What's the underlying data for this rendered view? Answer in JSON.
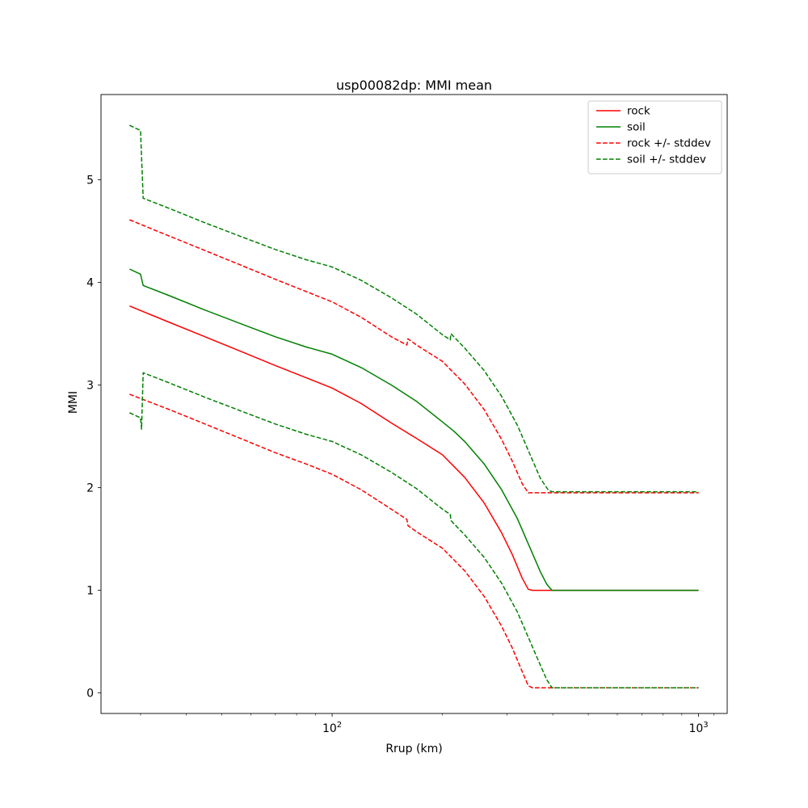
{
  "chart_data": {
    "type": "line",
    "title": "usp00082dp: MMI mean",
    "xlabel": "Rrup (km)",
    "ylabel": "MMI",
    "x_scale": "log",
    "grid": false,
    "xlim": [
      23.4,
      1197
    ],
    "ylim": [
      -0.2,
      5.83
    ],
    "x_major_ticks": [
      {
        "value": 100,
        "base": "10",
        "exp": "2"
      },
      {
        "value": 1000,
        "base": "10",
        "exp": "3"
      }
    ],
    "x_minor_ticks": [
      30,
      40,
      50,
      60,
      70,
      80,
      90,
      200,
      300,
      400,
      500,
      600,
      700,
      800,
      900,
      1100
    ],
    "y_ticks": [
      0,
      1,
      2,
      3,
      4,
      5
    ],
    "legend": {
      "position": "upper right",
      "entries": [
        {
          "label": "rock",
          "color": "#ff0000",
          "dash": false
        },
        {
          "label": "soil",
          "color": "#008000",
          "dash": false
        },
        {
          "label": "rock +/- stddev",
          "color": "#ff0000",
          "dash": true
        },
        {
          "label": "soil +/- stddev",
          "color": "#008000",
          "dash": true
        }
      ]
    },
    "series": [
      {
        "id": "rock-mean",
        "name": "rock",
        "color": "#ff0000",
        "dash": false,
        "points": [
          [
            28,
            3.77
          ],
          [
            36,
            3.61
          ],
          [
            45,
            3.47
          ],
          [
            57,
            3.32
          ],
          [
            70,
            3.19
          ],
          [
            85,
            3.07
          ],
          [
            100,
            2.97
          ],
          [
            120,
            2.82
          ],
          [
            145,
            2.63
          ],
          [
            170,
            2.48
          ],
          [
            200,
            2.32
          ],
          [
            230,
            2.1
          ],
          [
            260,
            1.85
          ],
          [
            290,
            1.56
          ],
          [
            310,
            1.35
          ],
          [
            330,
            1.12
          ],
          [
            343,
            1.01
          ],
          [
            352,
            1.0
          ],
          [
            500,
            1.0
          ],
          [
            1000,
            1.0
          ]
        ]
      },
      {
        "id": "soil-mean",
        "name": "soil",
        "color": "#008000",
        "dash": false,
        "points": [
          [
            28,
            4.13
          ],
          [
            30,
            4.08
          ],
          [
            30.5,
            3.97
          ],
          [
            36,
            3.87
          ],
          [
            45,
            3.73
          ],
          [
            57,
            3.59
          ],
          [
            70,
            3.47
          ],
          [
            85,
            3.37
          ],
          [
            100,
            3.3
          ],
          [
            120,
            3.17
          ],
          [
            145,
            3.0
          ],
          [
            170,
            2.84
          ],
          [
            200,
            2.64
          ],
          [
            215,
            2.55
          ],
          [
            230,
            2.45
          ],
          [
            260,
            2.23
          ],
          [
            290,
            1.98
          ],
          [
            320,
            1.7
          ],
          [
            350,
            1.38
          ],
          [
            370,
            1.18
          ],
          [
            385,
            1.06
          ],
          [
            398,
            1.0
          ],
          [
            500,
            1.0
          ],
          [
            1000,
            1.0
          ]
        ]
      },
      {
        "id": "rock-plus-stddev",
        "name": "rock + stddev",
        "color": "#ff0000",
        "dash": true,
        "points": [
          [
            28,
            4.61
          ],
          [
            36,
            4.45
          ],
          [
            45,
            4.31
          ],
          [
            57,
            4.16
          ],
          [
            70,
            4.03
          ],
          [
            85,
            3.91
          ],
          [
            100,
            3.81
          ],
          [
            120,
            3.66
          ],
          [
            145,
            3.47
          ],
          [
            160,
            3.39
          ],
          [
            161,
            3.45
          ],
          [
            170,
            3.39
          ],
          [
            200,
            3.23
          ],
          [
            230,
            3.01
          ],
          [
            260,
            2.76
          ],
          [
            290,
            2.47
          ],
          [
            310,
            2.26
          ],
          [
            330,
            2.04
          ],
          [
            343,
            1.95
          ],
          [
            500,
            1.95
          ],
          [
            1000,
            1.95
          ]
        ]
      },
      {
        "id": "rock-minus-stddev",
        "name": "rock - stddev",
        "color": "#ff0000",
        "dash": true,
        "points": [
          [
            28,
            2.91
          ],
          [
            36,
            2.76
          ],
          [
            45,
            2.62
          ],
          [
            57,
            2.47
          ],
          [
            70,
            2.34
          ],
          [
            85,
            2.23
          ],
          [
            100,
            2.13
          ],
          [
            120,
            1.98
          ],
          [
            145,
            1.79
          ],
          [
            160,
            1.69
          ],
          [
            161,
            1.63
          ],
          [
            170,
            1.57
          ],
          [
            200,
            1.41
          ],
          [
            230,
            1.19
          ],
          [
            260,
            0.94
          ],
          [
            290,
            0.65
          ],
          [
            310,
            0.44
          ],
          [
            330,
            0.21
          ],
          [
            343,
            0.07
          ],
          [
            352,
            0.05
          ],
          [
            500,
            0.05
          ],
          [
            1000,
            0.05
          ]
        ]
      },
      {
        "id": "soil-plus-stddev",
        "name": "soil + stddev",
        "color": "#008000",
        "dash": true,
        "points": [
          [
            28,
            5.53
          ],
          [
            30,
            5.48
          ],
          [
            30.5,
            4.82
          ],
          [
            36,
            4.72
          ],
          [
            45,
            4.58
          ],
          [
            57,
            4.44
          ],
          [
            70,
            4.32
          ],
          [
            85,
            4.22
          ],
          [
            100,
            4.15
          ],
          [
            120,
            4.02
          ],
          [
            145,
            3.85
          ],
          [
            170,
            3.69
          ],
          [
            200,
            3.49
          ],
          [
            210,
            3.44
          ],
          [
            211,
            3.5
          ],
          [
            230,
            3.36
          ],
          [
            260,
            3.14
          ],
          [
            290,
            2.89
          ],
          [
            320,
            2.61
          ],
          [
            350,
            2.29
          ],
          [
            370,
            2.09
          ],
          [
            390,
            1.97
          ],
          [
            400,
            1.96
          ],
          [
            500,
            1.96
          ],
          [
            1000,
            1.96
          ]
        ]
      },
      {
        "id": "soil-minus-stddev",
        "name": "soil - stddev",
        "color": "#008000",
        "dash": true,
        "points": [
          [
            28,
            2.73
          ],
          [
            30,
            2.68
          ],
          [
            30.2,
            2.57
          ],
          [
            30.5,
            3.12
          ],
          [
            36,
            3.02
          ],
          [
            45,
            2.88
          ],
          [
            57,
            2.74
          ],
          [
            70,
            2.62
          ],
          [
            85,
            2.52
          ],
          [
            100,
            2.45
          ],
          [
            120,
            2.32
          ],
          [
            145,
            2.15
          ],
          [
            170,
            1.99
          ],
          [
            200,
            1.79
          ],
          [
            210,
            1.74
          ],
          [
            211,
            1.68
          ],
          [
            230,
            1.54
          ],
          [
            260,
            1.32
          ],
          [
            290,
            1.07
          ],
          [
            320,
            0.79
          ],
          [
            350,
            0.47
          ],
          [
            370,
            0.27
          ],
          [
            385,
            0.13
          ],
          [
            398,
            0.05
          ],
          [
            500,
            0.05
          ],
          [
            1000,
            0.05
          ]
        ]
      }
    ]
  }
}
